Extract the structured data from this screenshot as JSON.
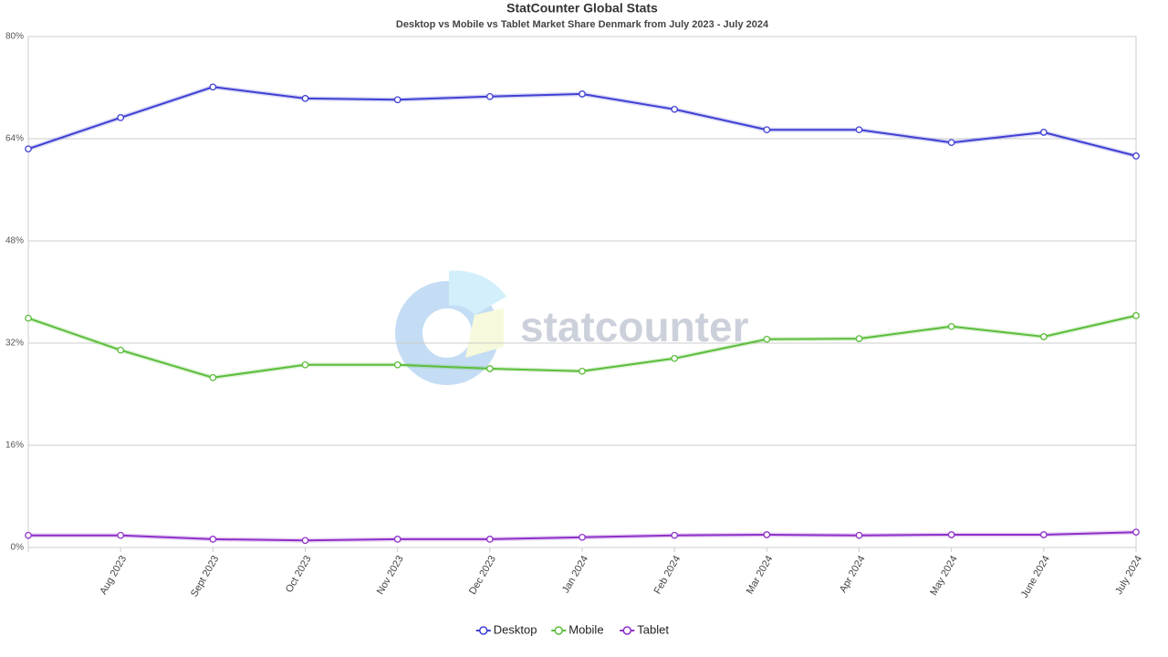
{
  "chart_data": {
    "type": "line",
    "title": "StatCounter Global Stats",
    "subtitle": "Desktop vs Mobile vs Tablet Market Share Denmark from July 2023 - July 2024",
    "watermark": "statcounter",
    "categories": [
      null,
      "Aug 2023",
      "Sept 2023",
      "Oct 2023",
      "Nov 2023",
      "Dec 2023",
      "Jan 2024",
      "Feb 2024",
      "Mar 2024",
      "Apr 2024",
      "May 2024",
      "June 2024",
      "July 2024"
    ],
    "series": [
      {
        "name": "Desktop",
        "color": "#3f3fd4",
        "values": [
          62.4,
          67.3,
          72.1,
          70.3,
          70.1,
          70.6,
          71.0,
          68.6,
          65.4,
          65.4,
          63.4,
          65.0,
          61.3
        ]
      },
      {
        "name": "Mobile",
        "color": "#5bbd3a",
        "values": [
          35.9,
          30.9,
          26.6,
          28.6,
          28.6,
          28.0,
          27.6,
          29.6,
          32.6,
          32.7,
          34.6,
          33.0,
          36.3
        ]
      },
      {
        "name": "Tablet",
        "color": "#8e2fc9",
        "values": [
          1.9,
          1.9,
          1.3,
          1.1,
          1.3,
          1.3,
          1.6,
          1.9,
          2.0,
          1.9,
          2.0,
          2.0,
          2.4
        ]
      }
    ],
    "ylim": [
      0,
      80
    ],
    "yticks": [
      {
        "value": 0,
        "label": "0%"
      },
      {
        "value": 16,
        "label": "16%"
      },
      {
        "value": 32,
        "label": "32%"
      },
      {
        "value": 48,
        "label": "48%"
      },
      {
        "value": 64,
        "label": "64%"
      },
      {
        "value": 80,
        "label": "80%"
      }
    ],
    "grid": true,
    "legend": "bottom"
  }
}
